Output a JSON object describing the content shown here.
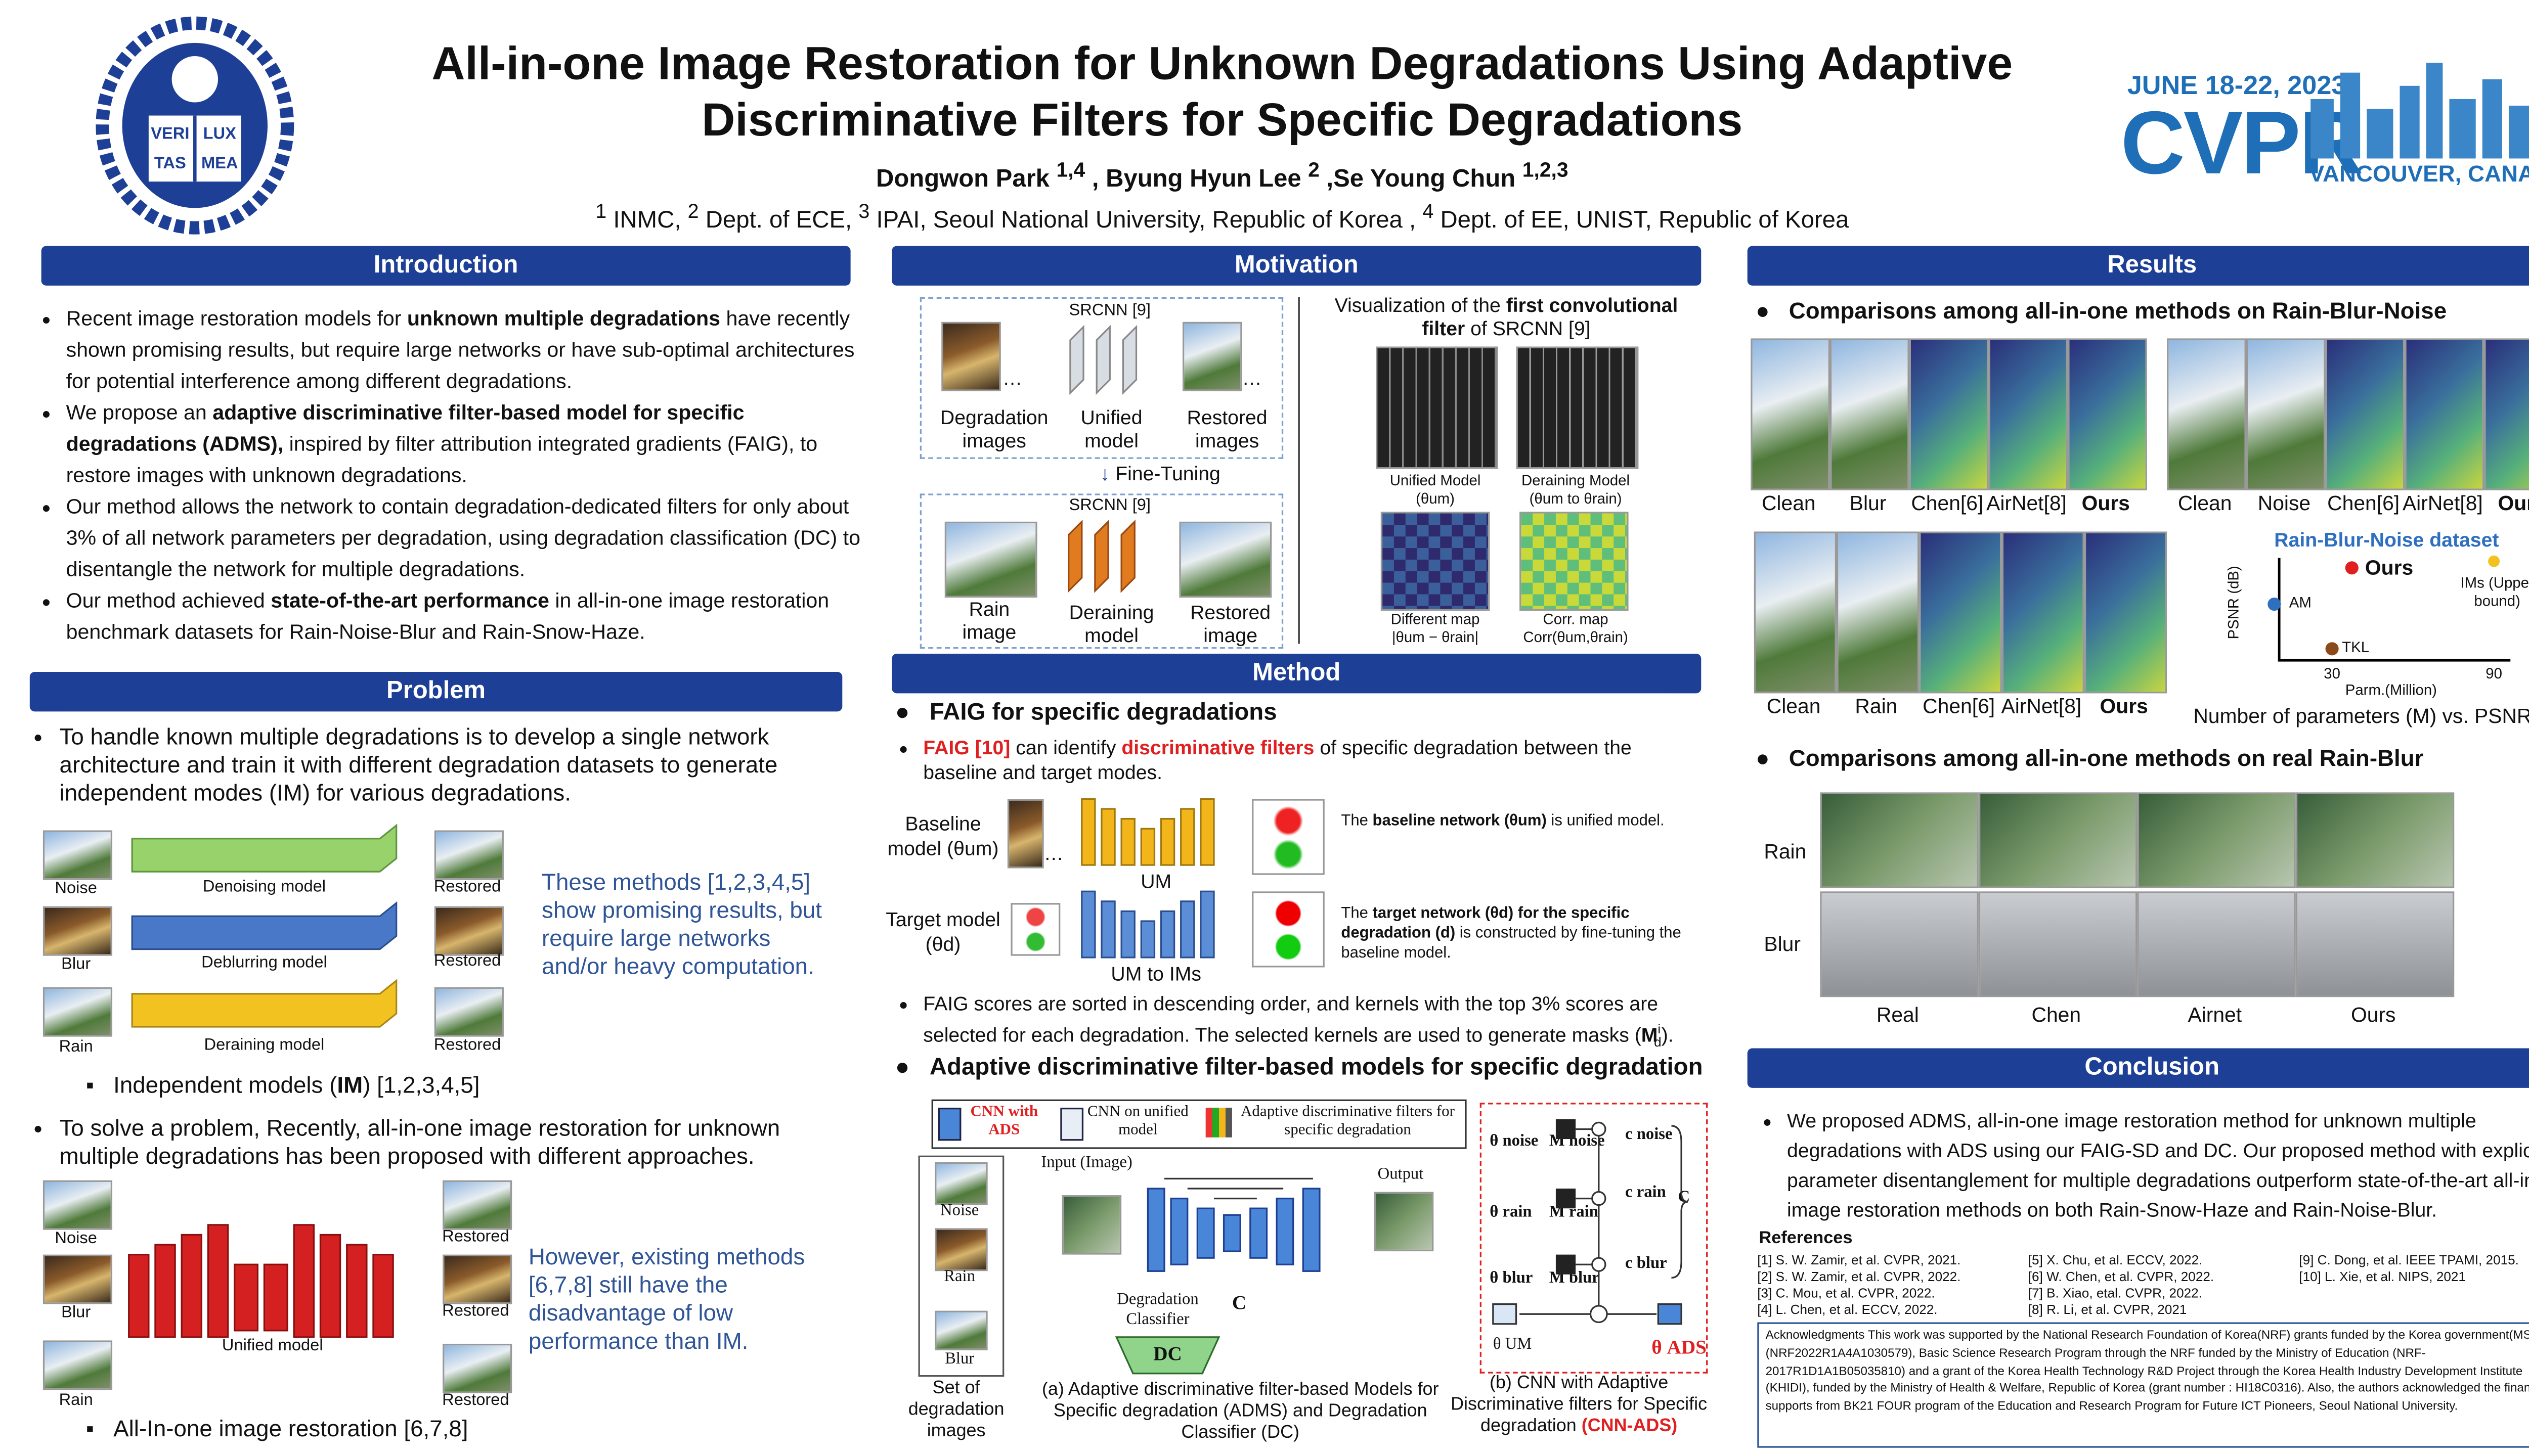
{
  "header": {
    "title_line1": "All-in-one Image Restoration for Unknown Degradations Using Adaptive",
    "title_line2": "Discriminative Filters for Specific Degradations",
    "authors": [
      "Dongwon Park ",
      "1,4",
      " , Byung Hyun Lee ",
      "2",
      " ,Se Young Chun ",
      "1,2,3"
    ],
    "affiliations": [
      "1",
      " INMC, ",
      "2",
      " Dept. of ECE, ",
      "3",
      " IPAI, Seoul National University, Republic of Korea , ",
      "4",
      " Dept. of EE, UNIST, Republic of Korea"
    ],
    "logo_text": [
      "VERI",
      "LUX",
      "TAS",
      "MEA"
    ],
    "conference": {
      "date": "JUNE 18-22, 2023",
      "name": "CVPR",
      "place": "VANCOUVER, CANADA"
    }
  },
  "introduction": {
    "title": "Introduction",
    "bullets": [
      [
        "Recent image restoration models for ",
        "unknown multiple degradations",
        " have recently shown promising results, but require large networks or have sub-optimal architectures for potential interference among different degradations."
      ],
      [
        "We propose an ",
        "adaptive discriminative filter-based model for specific degradations (ADMS),",
        " inspired by filter attribution integrated gradients (FAIG), to restore images with unknown degradations."
      ],
      [
        "Our method allows the network to contain degradation-dedicated filters for only about 3% of all network parameters per degradation, using degradation classification (DC) to disentangle the network for multiple degradations."
      ],
      [
        "Our method achieved ",
        "state-of-the-art performance",
        " in all-in-one image restoration benchmark datasets for Rain-Noise-Blur and Rain-Snow-Haze."
      ]
    ]
  },
  "problem": {
    "title": "Problem",
    "bullet1": "To handle known multiple degradations is to develop a single network architecture and train it with different degradation datasets to generate independent modes (IM) for various degradations.",
    "figure1": {
      "inputs": [
        "Noise",
        "Blur",
        "Rain"
      ],
      "models": [
        "Denoising model",
        "Deblurring model",
        "Deraining model"
      ],
      "outputs": [
        "Restored",
        "Restored",
        "Restored"
      ],
      "note": "These methods [1,2,3,4,5] show promising results, but require large networks and/or heavy computation."
    },
    "sub1": [
      "Independent models (",
      "IM",
      ") [1,2,3,4,5]"
    ],
    "bullet2": "To solve a problem, Recently, all-in-one image restoration for unknown multiple degradations has been proposed with different approaches.",
    "figure2": {
      "inputs": [
        "Noise",
        "Blur",
        "Rain"
      ],
      "model": "Unified model",
      "outputs": [
        "Restored",
        "Restored",
        "Restored"
      ],
      "note": "However, existing methods [6,7,8] still have the disadvantage of low performance than IM."
    },
    "sub2": "All-In-one image restoration [6,7,8]"
  },
  "motivation": {
    "title": "Motivation",
    "top": {
      "network": "SRCNN [9]",
      "inputs": "Degradation images",
      "model": "Unified model",
      "outputs": "Restored images"
    },
    "arrow": "Fine-Tuning",
    "bottom": {
      "network": "SRCNN [9]",
      "inputs": "Rain image",
      "model": "Deraining model",
      "outputs": "Restored image"
    },
    "vis_title": [
      "Visualization of the ",
      "first convolutional filter",
      " of SRCNN [9]"
    ],
    "maps": [
      "Unified Model",
      "(θum)",
      "Deraining  Model",
      "(θum to θrain)",
      "Different map",
      "|θum − θrain|",
      "Corr. map",
      "Corr(θum,θrain)"
    ]
  },
  "method": {
    "title": "Method",
    "h1": "FAIG for specific degradations",
    "b1": [
      "FAIG [10]",
      "  can identify ",
      "discriminative filters",
      " of specific degradation between the baseline and target modes."
    ],
    "baseline": "Baseline model (θum)",
    "um": "UM",
    "target": "Target model (θd)",
    "um_to_ims": "UM to IMs",
    "baseline_note": [
      "The ",
      "baseline network (θum)",
      " is unified model."
    ],
    "target_note": [
      "The ",
      "target network (θd) for the specific degradation (d)",
      " is constructed by fine-tuning the baseline model."
    ],
    "b2": [
      "FAIG scores are sorted in descending order, and kernels with the top 3% scores are selected for each degradation.  The selected kernels are used to generate masks (",
      "M",
      "i",
      "d",
      ")."
    ],
    "h2": "Adaptive discriminative filter-based models for specific degradation",
    "legend": [
      "CNN with ADS",
      "CNN on unified model",
      "Adaptive discriminative filters for specific degradation"
    ],
    "fig_a": {
      "inputs": [
        "Noise",
        "Rain",
        "Blur"
      ],
      "set": "Set of degradation images",
      "input": "Input (Image)",
      "output": "Output",
      "classifier": "Degradation Classifier",
      "c": "C",
      "dc": "DC",
      "caption": "(a) Adaptive discriminative filter-based Models for Specific degradation (ADMS) and Degradation Classifier (DC)"
    },
    "fig_b": {
      "labels": [
        "θ noise",
        "M noise",
        "c noise",
        "θ rain",
        "M rain",
        "c rain",
        "θ blur",
        "M blur",
        "c blur",
        "θ UM",
        "θ ADS",
        "C"
      ],
      "caption": "(b) CNN with Adaptive Discriminative filters for Specific degradation ",
      "caption_red": "(CNN-ADS)"
    }
  },
  "results": {
    "title": "Results",
    "h1": "Comparisons among all-in-one methods on Rain-Blur-Noise",
    "row1": [
      "Clean",
      "Blur",
      "Chen[6]",
      "AirNet[8]",
      "Ours",
      "Clean",
      "Noise",
      "Chen[6]",
      "AirNet[8]",
      "Ours"
    ],
    "row2": [
      "Clean",
      "Rain",
      "Chen[6]",
      "AirNet[8]",
      "Ours"
    ],
    "plot": {
      "title": "Rain-Blur-Noise dataset",
      "ours": "Ours",
      "ims": "IMs (Upper bound)",
      "am": "AM",
      "tkl": "TKL",
      "ylabel": "PSNR (dB)",
      "xlabel": "Parm.(Million)",
      "xticks": [
        "30",
        "90"
      ]
    },
    "plot_caption": "Number of parameters (M) vs. PSNR (dB)",
    "h2": "Comparisons among all-in-one methods on real Rain-Blur",
    "rows": [
      "Rain",
      "Blur"
    ],
    "cols": [
      "Real",
      "Chen",
      "Airnet",
      "Ours"
    ]
  },
  "conclusion": {
    "title": "Conclusion",
    "text": "We proposed ADMS, all-in-one image restoration method for unknown multiple degradations with ADS using our FAIG-SD and DC. Our proposed method with explicit parameter disentanglement for multiple degradations outperform state-of-the-art all-in-one image restoration methods on both Rain-Snow-Haze and Rain-Noise-Blur.",
    "references_title": "References",
    "references": [
      "[1] S. W. Zamir, et al. CVPR, 2021.",
      "[2] S. W. Zamir, et al. CVPR, 2022.",
      "[3] C. Mou, et al. CVPR, 2022.",
      "[4] L. Chen, et al. ECCV, 2022.",
      "[5] X. Chu, et al. ECCV, 2022.",
      "[6] W. Chen, et al. CVPR, 2022.",
      "[7] B. Xiao, etal. CVPR, 2022.",
      "[8] R. Li, et al. CVPR, 2021",
      "[9] C. Dong, et al. IEEE TPAMI, 2015.",
      "[10] L. Xie, et al. NIPS, 2021"
    ],
    "acknowledgments": "Acknowledgments This work was supported by the National Research Foundation of Korea(NRF) grants funded by the Korea government(MSIT) (NRF2022R1A4A1030579), Basic Science Research Program through the NRF funded by the Ministry of Education (NRF-2017R1D1A1B05035810) and a grant of the Korea Health Technology R&D Project through the Korea Health Industry Development Institute (KHIDI), funded by the Ministry of Health & Welfare, Republic of Korea (grant number : HI18C0316). Also, the authors acknowledged the financial supports from BK21 FOUR program of the Education and Research Program for Future ICT Pioneers, Seoul National University."
  }
}
